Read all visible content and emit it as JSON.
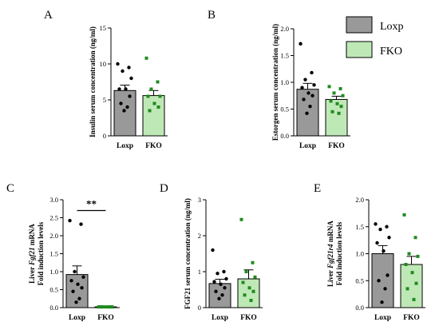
{
  "colors": {
    "loxp_fill": "#999999",
    "fko_fill": "#bfe8b7",
    "loxp_point": "#000000",
    "fko_point": "#1f8a1f",
    "bar_stroke": "#000000"
  },
  "legend": {
    "items": [
      {
        "label": "Loxp",
        "color": "#999999"
      },
      {
        "label": "FKO",
        "color": "#bfe8b7"
      }
    ],
    "placement": "top-right"
  },
  "chart_data": [
    {
      "panel": "A",
      "type": "bar",
      "categories": [
        "Loxp",
        "FKO"
      ],
      "values": [
        6.3,
        5.6
      ],
      "sem": [
        0.75,
        0.7
      ],
      "points": [
        [
          10,
          9.5,
          9,
          8,
          6.5,
          6.5,
          5.5,
          4.5,
          4,
          3.5
        ],
        [
          10.8,
          7.5,
          6.5,
          5.5,
          5.5,
          4.5,
          4,
          3.5
        ]
      ],
      "ylabel": "Insulin serum concentration (ng/ml)",
      "ylim": [
        0,
        15
      ],
      "yticks": [
        "0",
        "5",
        "10",
        "15"
      ],
      "significance": ""
    },
    {
      "panel": "B",
      "type": "bar",
      "categories": [
        "Loxp",
        "FKO"
      ],
      "values": [
        0.87,
        0.68
      ],
      "sem": [
        0.11,
        0.06
      ],
      "points": [
        [
          1.72,
          1.18,
          1.05,
          0.95,
          0.9,
          0.8,
          0.75,
          0.68,
          0.55,
          0.42
        ],
        [
          0.92,
          0.88,
          0.8,
          0.75,
          0.65,
          0.6,
          0.55,
          0.45,
          0.42
        ]
      ],
      "ylabel": "Estorgen serum concentration (ng/ml)",
      "ylim": [
        0,
        2.0
      ],
      "yticks": [
        "0.0",
        "0.5",
        "1.0",
        "1.5",
        "2.0"
      ],
      "significance": ""
    },
    {
      "panel": "C",
      "type": "bar",
      "categories": [
        "Loxp",
        "FKO"
      ],
      "values": [
        0.92,
        0.02
      ],
      "sem": [
        0.24,
        0.01
      ],
      "points": [
        [
          2.42,
          2.32,
          1.0,
          0.85,
          0.75,
          0.65,
          0.55,
          0.45,
          0.25,
          0.15
        ],
        [
          0.02,
          0.02,
          0.02,
          0.02,
          0.02,
          0.02,
          0.02,
          0.02
        ]
      ],
      "ylabel": "Liver Fgf21 mRNA Fold induction levels",
      "ylabel_lines": [
        "Liver ",
        "Fgf21",
        " mRNA",
        "Fold induction levels"
      ],
      "ylim": [
        0,
        3.0
      ],
      "yticks": [
        "0.0",
        "0.5",
        "1.0",
        "1.5",
        "2.0",
        "2.5",
        "3.0"
      ],
      "significance": "**"
    },
    {
      "panel": "D",
      "type": "bar",
      "categories": [
        "Loxp",
        "FKO"
      ],
      "values": [
        0.67,
        0.8
      ],
      "sem": [
        0.12,
        0.25
      ],
      "points": [
        [
          1.6,
          1.0,
          0.95,
          0.8,
          0.72,
          0.65,
          0.55,
          0.45,
          0.35,
          0.25
        ],
        [
          2.45,
          1.25,
          1.0,
          0.85,
          0.7,
          0.55,
          0.45,
          0.35,
          0.2
        ]
      ],
      "ylabel": "FGF21 serum concentration (ng/ml)",
      "ylim": [
        0,
        3
      ],
      "yticks": [
        "0",
        "1",
        "2",
        "3"
      ],
      "significance": ""
    },
    {
      "panel": "E",
      "type": "bar",
      "categories": [
        "Loxp",
        "FKO"
      ],
      "values": [
        1.0,
        0.8
      ],
      "sem": [
        0.15,
        0.15
      ],
      "points": [
        [
          1.55,
          1.5,
          1.45,
          1.3,
          1.2,
          1.05,
          0.6,
          0.5,
          0.35,
          0.1
        ],
        [
          1.72,
          1.3,
          1.0,
          0.95,
          0.8,
          0.65,
          0.45,
          0.35,
          0.15
        ]
      ],
      "ylabel": "Liver Fgf21r4 mRNA Fold induction levels",
      "ylabel_lines": [
        "Liver ",
        "Fgf21r4",
        " mRNA",
        "Fold induction levels"
      ],
      "ylim": [
        0,
        2.0
      ],
      "yticks": [
        "0.0",
        "0.5",
        "1.0",
        "1.5",
        "2.0"
      ],
      "significance": ""
    }
  ]
}
